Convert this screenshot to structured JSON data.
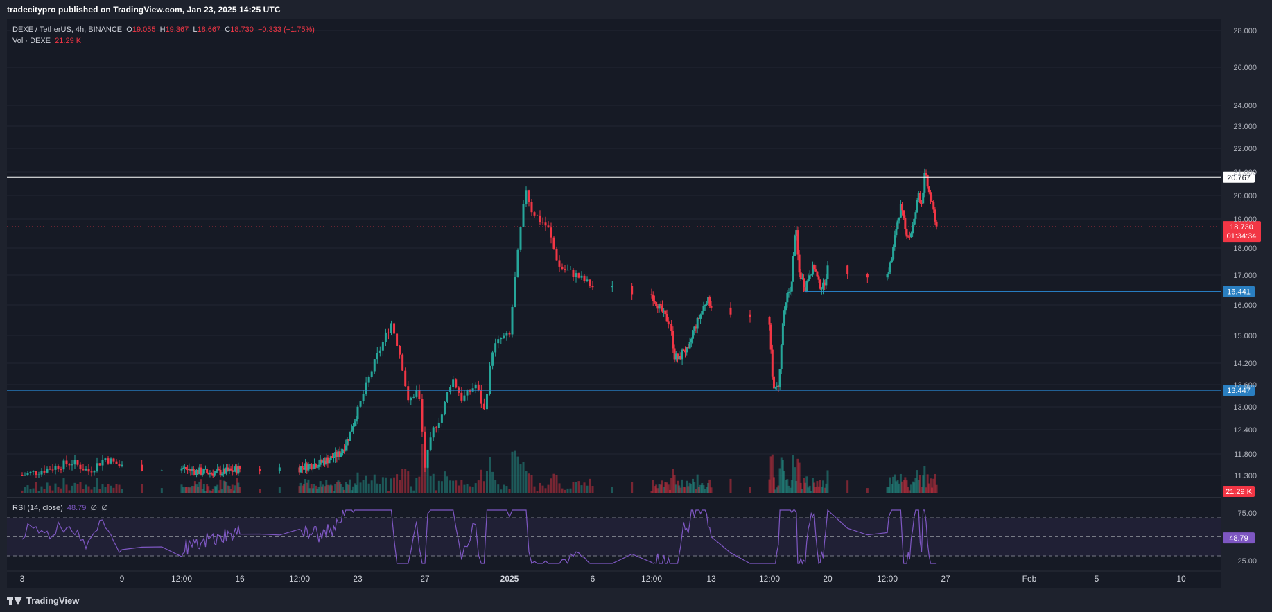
{
  "header": {
    "published": "tradecitypro published on TradingView.com, Jan 23, 2025 14:25 UTC"
  },
  "legend": {
    "symbol": "DEXE / TetherUS, 4h, BINANCE",
    "o_label": "O",
    "o": "19.055",
    "h_label": "H",
    "h": "19.367",
    "l_label": "L",
    "l": "18.667",
    "c_label": "C",
    "c": "18.730",
    "change": "−0.333 (−1.75%)",
    "vol_label": "Vol · DEXE",
    "vol": "21.29 K"
  },
  "rsi_legend": {
    "label": "RSI (14, close)",
    "value": "48.79",
    "extra1": "∅",
    "extra2": "∅"
  },
  "brand": {
    "name": "TradingView"
  },
  "colors": {
    "bull": "#26a69a",
    "bear": "#f23645",
    "rsi": "#7e57c2",
    "hline": "#2962ff",
    "white_line": "#ffffff"
  },
  "chart_data": {
    "type": "candlestick",
    "title": "DEXE / TetherUS, 4h, BINANCE",
    "price_axis_ticks": [
      28.0,
      26.0,
      24.0,
      23.0,
      22.0,
      21.0,
      20.0,
      19.0,
      18.0,
      17.0,
      16.0,
      15.0,
      14.2,
      13.6,
      13.0,
      12.4,
      11.8,
      11.3
    ],
    "price_axis_labels": [
      "28.000",
      "26.000",
      "24.000",
      "23.000",
      "22.000",
      "21.000",
      "20.000",
      "19.000",
      "18.000",
      "17.000",
      "16.000",
      "15.000",
      "14.200",
      "13.600",
      "13.000",
      "12.400",
      "11.800",
      "11.300"
    ],
    "time_axis_labels": [
      "3",
      "9",
      "12:00",
      "16",
      "12:00",
      "23",
      "27",
      "2025",
      "6",
      "12:00",
      "13",
      "12:00",
      "20",
      "12:00",
      "27",
      "Feb",
      "5",
      "10"
    ],
    "horizontal_levels": [
      {
        "value": 20.767,
        "label": "20.767",
        "color": "#ffffff"
      },
      {
        "value": 16.441,
        "label": "16.441",
        "color": "#2962ff"
      },
      {
        "value": 13.447,
        "label": "13.447",
        "color": "#2962ff"
      }
    ],
    "last_price": {
      "value": 18.73,
      "label": "18.730",
      "countdown": "01:34:34"
    },
    "volume_last_label": "21.29 K",
    "key_points": [
      {
        "t": "Dec 3",
        "price": 11.3
      },
      {
        "t": "Dec 22",
        "price": 12.9
      },
      {
        "t": "Dec 24",
        "price": 15.6
      },
      {
        "t": "Dec 27",
        "price": 11.5
      },
      {
        "t": "Dec 30",
        "price": 14.8
      },
      {
        "t": "Jan 2",
        "price": 21.8
      },
      {
        "t": "Jan 9",
        "price": 14.1
      },
      {
        "t": "Jan 11",
        "price": 16.3
      },
      {
        "t": "Jan 14",
        "price": 13.4
      },
      {
        "t": "Jan 16",
        "price": 19.1
      },
      {
        "t": "Jan 22",
        "price": 21.4
      },
      {
        "t": "Jan 23",
        "price": 18.73
      }
    ],
    "rsi": {
      "label": "RSI (14, close)",
      "value": 48.79,
      "levels": [
        70,
        50,
        30
      ],
      "axis_labels": [
        "75.00",
        "25.00"
      ],
      "value_label": "48.79"
    }
  }
}
